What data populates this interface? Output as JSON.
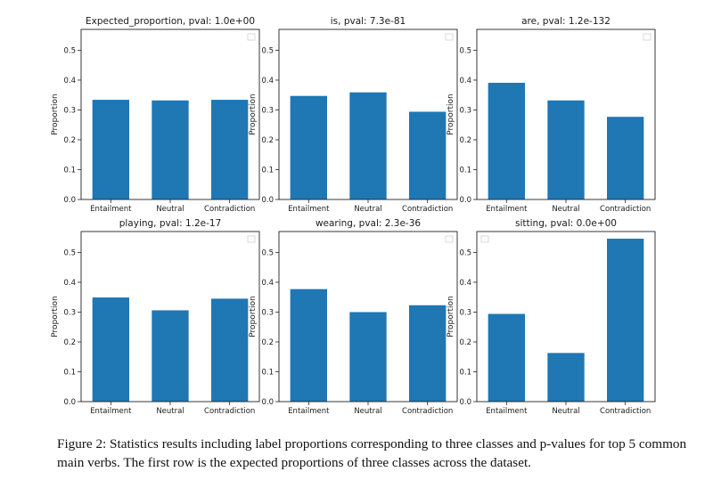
{
  "chart_data": [
    {
      "type": "bar",
      "title": "Expected_proportion, pval: 1.0e+00",
      "ylabel": "Proportion",
      "categories": [
        "Entailment",
        "Neutral",
        "Contradiction"
      ],
      "values": [
        0.334,
        0.332,
        0.334
      ],
      "ylim": [
        0,
        0.57
      ],
      "yticks": [
        "0.0",
        "0.1",
        "0.2",
        "0.3",
        "0.4",
        "0.5"
      ],
      "legend": "top-right",
      "color": "#1f77b4"
    },
    {
      "type": "bar",
      "title": "is, pval: 7.3e-81",
      "ylabel": "Proportion",
      "categories": [
        "Entailment",
        "Neutral",
        "Contradiction"
      ],
      "values": [
        0.347,
        0.359,
        0.294
      ],
      "ylim": [
        0,
        0.57
      ],
      "yticks": [
        "0.0",
        "0.1",
        "0.2",
        "0.3",
        "0.4",
        "0.5"
      ],
      "legend": "top-right",
      "color": "#1f77b4"
    },
    {
      "type": "bar",
      "title": "are, pval: 1.2e-132",
      "ylabel": "Proportion",
      "categories": [
        "Entailment",
        "Neutral",
        "Contradiction"
      ],
      "values": [
        0.391,
        0.332,
        0.277
      ],
      "ylim": [
        0,
        0.57
      ],
      "yticks": [
        "0.0",
        "0.1",
        "0.2",
        "0.3",
        "0.4",
        "0.5"
      ],
      "legend": "top-right",
      "color": "#1f77b4"
    },
    {
      "type": "bar",
      "title": "playing, pval: 1.2e-17",
      "ylabel": "Proportion",
      "categories": [
        "Entailment",
        "Neutral",
        "Contradiction"
      ],
      "values": [
        0.349,
        0.306,
        0.345
      ],
      "ylim": [
        0,
        0.57
      ],
      "yticks": [
        "0.0",
        "0.1",
        "0.2",
        "0.3",
        "0.4",
        "0.5"
      ],
      "legend": "top-right",
      "color": "#1f77b4"
    },
    {
      "type": "bar",
      "title": "wearing, pval: 2.3e-36",
      "ylabel": "Proportion",
      "categories": [
        "Entailment",
        "Neutral",
        "Contradiction"
      ],
      "values": [
        0.377,
        0.3,
        0.323
      ],
      "ylim": [
        0,
        0.57
      ],
      "yticks": [
        "0.0",
        "0.1",
        "0.2",
        "0.3",
        "0.4",
        "0.5"
      ],
      "legend": "top-right",
      "color": "#1f77b4"
    },
    {
      "type": "bar",
      "title": "sitting, pval: 0.0e+00",
      "ylabel": "Proportion",
      "categories": [
        "Entailment",
        "Neutral",
        "Contradiction"
      ],
      "values": [
        0.294,
        0.163,
        0.546
      ],
      "ylim": [
        0,
        0.57
      ],
      "yticks": [
        "0.0",
        "0.1",
        "0.2",
        "0.3",
        "0.4",
        "0.5"
      ],
      "legend": "top-left",
      "color": "#1f77b4"
    }
  ],
  "caption": "Figure 2: Statistics results including label proportions corresponding to three classes and p-values for top 5 common main verbs. The first row is the expected proportions of three classes across the dataset."
}
